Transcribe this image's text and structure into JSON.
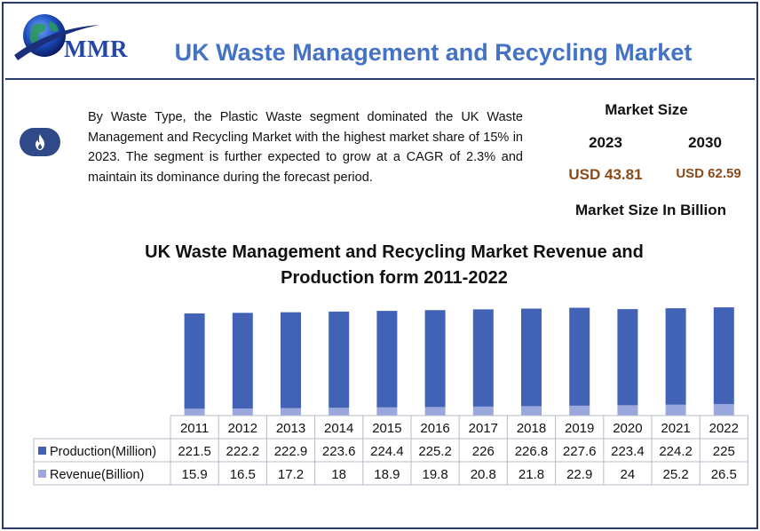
{
  "header": {
    "logo_text": "MMR",
    "title": "UK Waste Management and Recycling Market"
  },
  "summary": {
    "icon": "fire-icon",
    "text": "By Waste Type, the Plastic Waste segment dominated the UK Waste Management and Recycling Market with the highest market share of 15% in 2023. The segment is further expected to grow at a CAGR of 2.3% and maintain its dominance during the forecast period."
  },
  "market_size": {
    "title": "Market Size",
    "year_start": "2023",
    "year_end": "2030",
    "value_start": "USD 43.81",
    "value_end": "USD 62.59",
    "unit_label": "Market Size In Billion"
  },
  "colors": {
    "production": "#4263b5",
    "revenue": "#9aa8de",
    "title_blue": "#4472c4",
    "value_brown": "#8b4a1a"
  },
  "chart_data": {
    "type": "bar",
    "stacked": true,
    "title_line1": "UK Waste Management and Recycling Market Revenue and",
    "title_line2": "Production form 2011-2022",
    "categories": [
      "2011",
      "2012",
      "2013",
      "2014",
      "2015",
      "2016",
      "2017",
      "2018",
      "2019",
      "2020",
      "2021",
      "2022"
    ],
    "series": [
      {
        "name": "Production(Million)",
        "values": [
          "221.5",
          "222.2",
          "222.9",
          "223.6",
          "224.4",
          "225.2",
          "226",
          "226.8",
          "227.6",
          "223.4",
          "224.2",
          "225"
        ]
      },
      {
        "name": "Revenue(Billion)",
        "values": [
          "15.9",
          "16.5",
          "17.2",
          "18",
          "18.9",
          "19.8",
          "20.8",
          "21.8",
          "22.9",
          "24",
          "25.2",
          "26.5"
        ]
      }
    ],
    "ylim": [
      0,
      260
    ],
    "legend": "data-table-left"
  }
}
